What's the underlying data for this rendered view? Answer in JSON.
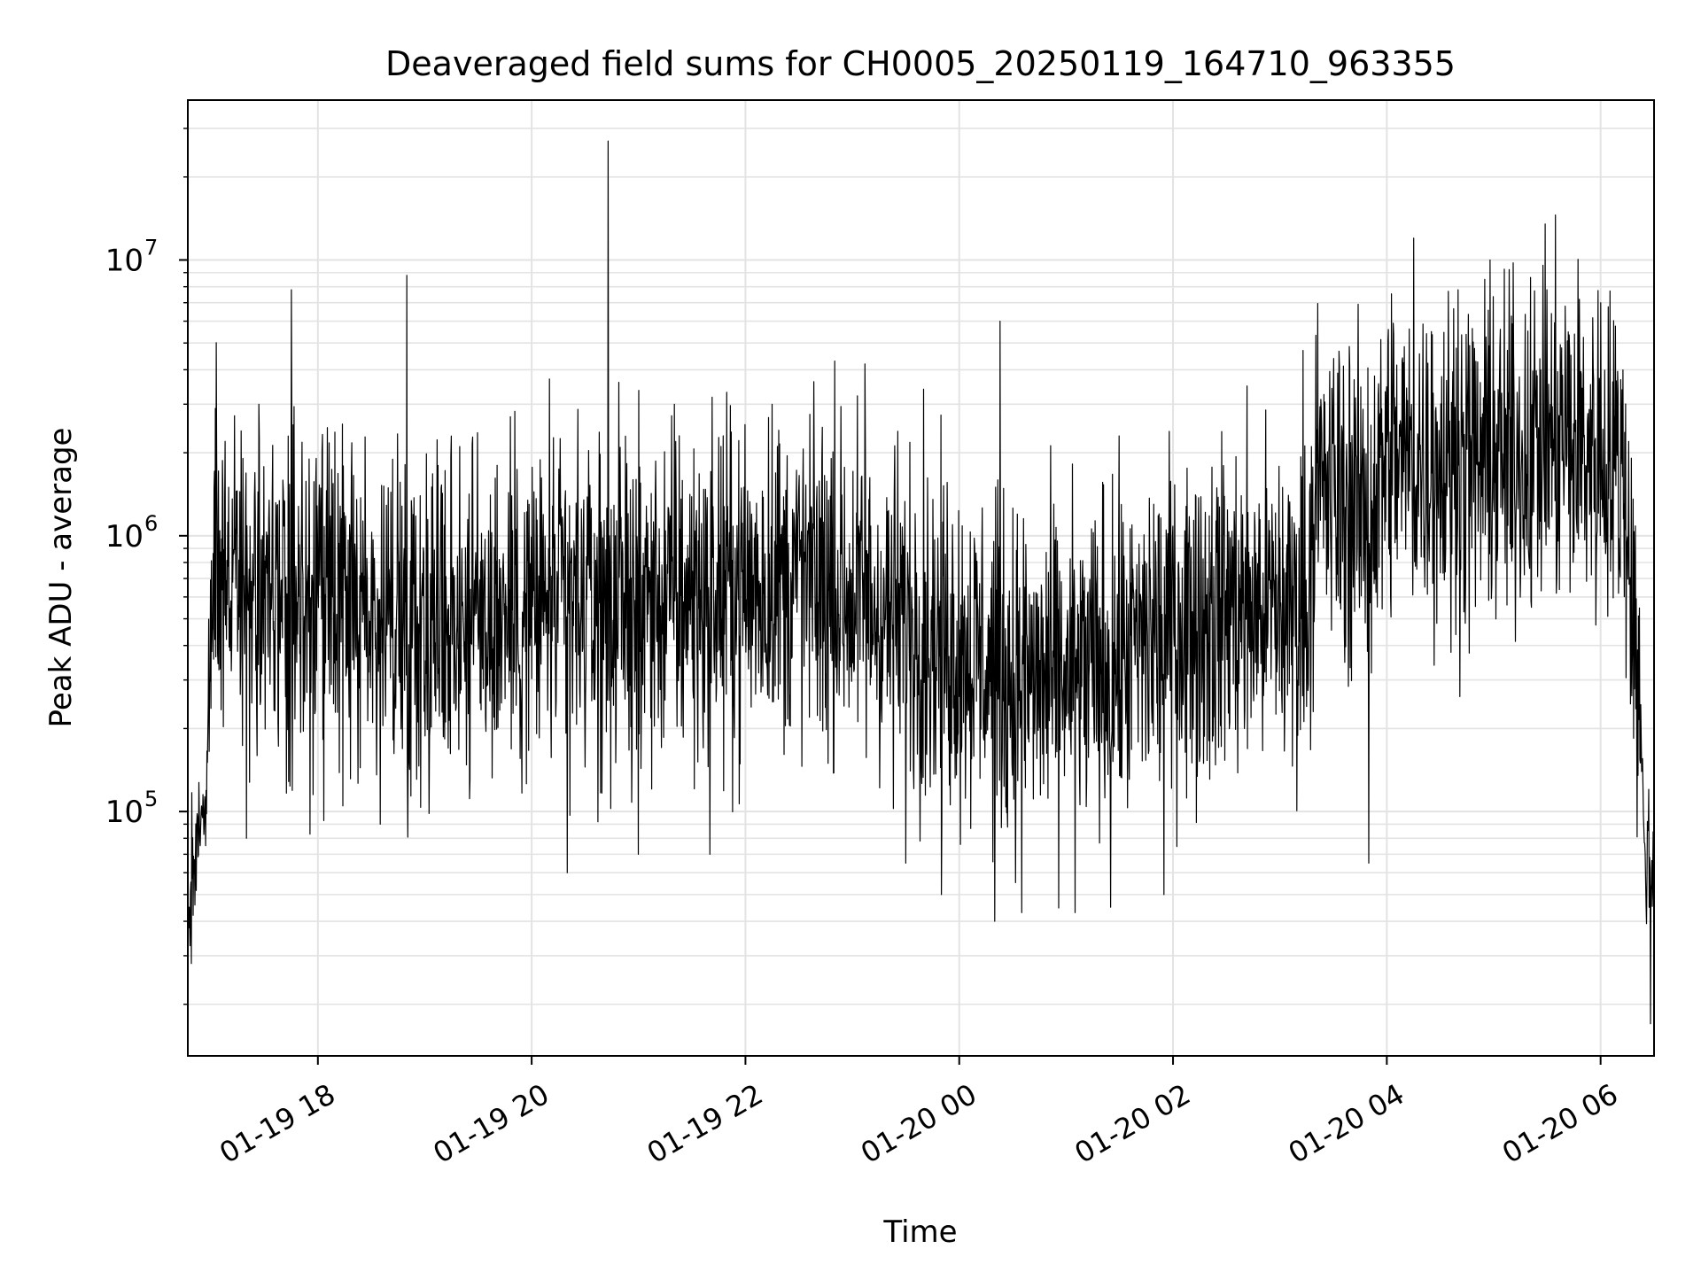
{
  "chart_data": {
    "type": "line",
    "title": "Deaveraged field sums for CH0005_20250119_164710_963355",
    "xlabel": "Time",
    "ylabel": "Peak ADU - average",
    "yscale": "log",
    "xlim": [
      "2025-01-19 16:47",
      "2025-01-20 06:30"
    ],
    "ylim": [
      13000,
      38000000
    ],
    "x_ticks": [
      {
        "label": "01-19 18",
        "t": "2025-01-19 18:00"
      },
      {
        "label": "01-19 20",
        "t": "2025-01-19 20:00"
      },
      {
        "label": "01-19 22",
        "t": "2025-01-19 22:00"
      },
      {
        "label": "01-20 00",
        "t": "2025-01-20 00:00"
      },
      {
        "label": "01-20 02",
        "t": "2025-01-20 02:00"
      },
      {
        "label": "01-20 04",
        "t": "2025-01-20 04:00"
      },
      {
        "label": "01-20 06",
        "t": "2025-01-20 06:00"
      }
    ],
    "y_ticks": [
      {
        "label": "10",
        "exponent": "5",
        "value": 100000
      },
      {
        "label": "10",
        "exponent": "6",
        "value": 1000000
      },
      {
        "label": "10",
        "exponent": "7",
        "value": 10000000
      }
    ],
    "grid": true,
    "line_color": "#000000",
    "envelope": {
      "t": [
        "2025-01-19 16:47",
        "2025-01-19 16:57",
        "2025-01-19 17:02",
        "2025-01-19 17:15",
        "2025-01-19 17:40",
        "2025-01-19 18:30",
        "2025-01-19 19:30",
        "2025-01-19 20:30",
        "2025-01-19 21:30",
        "2025-01-19 22:30",
        "2025-01-19 23:00",
        "2025-01-19 23:40",
        "2025-01-20 00:00",
        "2025-01-20 00:30",
        "2025-01-20 01:00",
        "2025-01-20 01:30",
        "2025-01-20 02:00",
        "2025-01-20 02:30",
        "2025-01-20 03:15",
        "2025-01-20 03:20",
        "2025-01-20 03:50",
        "2025-01-20 04:00",
        "2025-01-20 04:30",
        "2025-01-20 05:00",
        "2025-01-20 05:30",
        "2025-01-20 06:00",
        "2025-01-20 06:13",
        "2025-01-20 06:20",
        "2025-01-20 06:25",
        "2025-01-20 06:30"
      ],
      "center": [
        45000,
        120000,
        900000,
        650000,
        550000,
        520000,
        520000,
        550000,
        600000,
        700000,
        600000,
        450000,
        400000,
        300000,
        300000,
        350000,
        480000,
        550000,
        550000,
        1500000,
        1200000,
        2000000,
        1800000,
        1800000,
        2200000,
        2000000,
        1700000,
        400000,
        70000,
        60000
      ]
    },
    "spikes": [
      {
        "t": "2025-01-19 17:08",
        "value": 2200000
      },
      {
        "t": "2025-01-19 17:17",
        "value": 2400000
      },
      {
        "t": "2025-01-19 17:27",
        "value": 3000000
      },
      {
        "t": "2025-01-19 17:45",
        "value": 7800000
      },
      {
        "t": "2025-01-19 18:50",
        "value": 8800000
      },
      {
        "t": "2025-01-19 19:15",
        "value": 2300000
      },
      {
        "t": "2025-01-19 19:48",
        "value": 2700000
      },
      {
        "t": "2025-01-19 20:10",
        "value": 3700000
      },
      {
        "t": "2025-01-19 20:43",
        "value": 27000000
      },
      {
        "t": "2025-01-19 21:20",
        "value": 3000000
      },
      {
        "t": "2025-01-19 22:15",
        "value": 3000000
      },
      {
        "t": "2025-01-19 22:50",
        "value": 4300000
      },
      {
        "t": "2025-01-19 23:07",
        "value": 4200000
      },
      {
        "t": "2025-01-19 23:40",
        "value": 3400000
      },
      {
        "t": "2025-01-20 00:23",
        "value": 6000000
      },
      {
        "t": "2025-01-20 03:13",
        "value": 4700000
      },
      {
        "t": "2025-01-20 04:15",
        "value": 12000000
      },
      {
        "t": "2025-01-20 04:25",
        "value": 5500000
      },
      {
        "t": "2025-01-20 04:40",
        "value": 7800000
      },
      {
        "t": "2025-01-20 04:58",
        "value": 10000000
      },
      {
        "t": "2025-01-20 05:30",
        "value": 7800000
      },
      {
        "t": "2025-01-20 05:40",
        "value": 6800000
      },
      {
        "t": "2025-01-20 05:48",
        "value": 7200000
      },
      {
        "t": "2025-01-20 06:00",
        "value": 7000000
      }
    ],
    "dips": [
      {
        "t": "2025-01-19 17:20",
        "value": 80000
      },
      {
        "t": "2025-01-19 18:35",
        "value": 90000
      },
      {
        "t": "2025-01-19 20:20",
        "value": 60000
      },
      {
        "t": "2025-01-19 21:00",
        "value": 70000
      },
      {
        "t": "2025-01-19 21:40",
        "value": 70000
      },
      {
        "t": "2025-01-19 23:30",
        "value": 65000
      },
      {
        "t": "2025-01-19 23:50",
        "value": 50000
      },
      {
        "t": "2025-01-20 00:20",
        "value": 40000
      },
      {
        "t": "2025-01-20 00:35",
        "value": 43000
      },
      {
        "t": "2025-01-20 01:05",
        "value": 43000
      },
      {
        "t": "2025-01-20 01:25",
        "value": 45000
      },
      {
        "t": "2025-01-20 01:55",
        "value": 50000
      },
      {
        "t": "2025-01-20 03:50",
        "value": 65000
      },
      {
        "t": "2025-01-20 06:28",
        "value": 17000
      }
    ]
  }
}
